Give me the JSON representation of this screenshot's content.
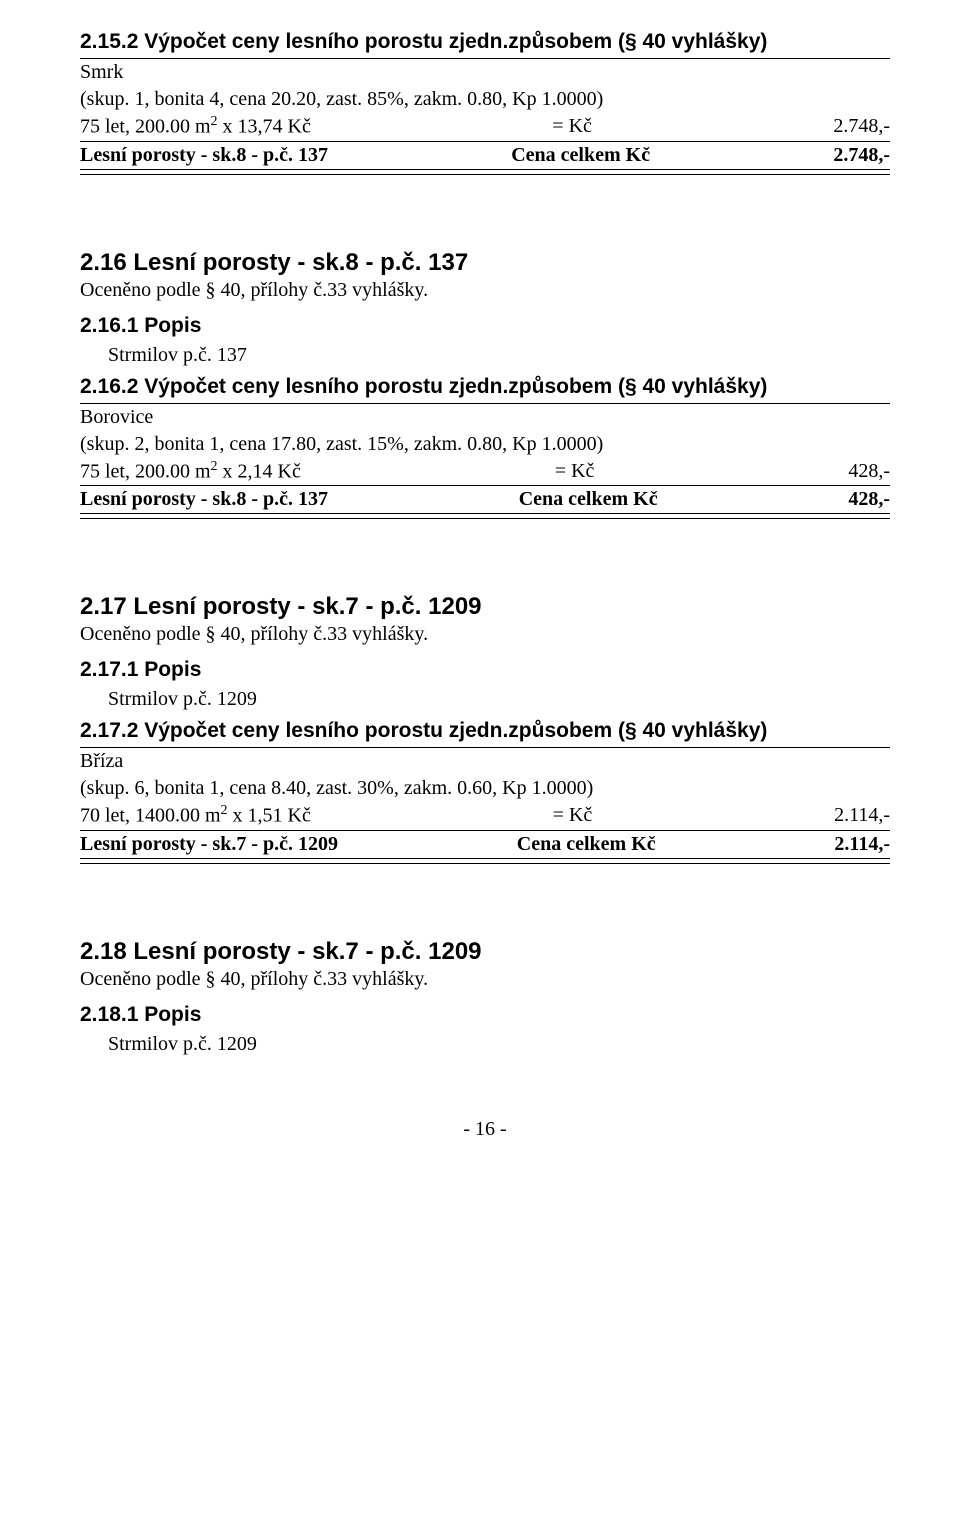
{
  "s15": {
    "heading": "2.15.2 Výpočet ceny lesního porostu zjedn.způsobem (§ 40 vyhlášky)",
    "species": "Smrk",
    "params": "(skup. 1, bonita 4, cena 20.20, zast. 85%, zakm. 0.80, Kp 1.0000)",
    "calc_left": "75 let, 200.00 m",
    "calc_right": " x 13,74 Kč",
    "eq": "= Kč",
    "amount": "2.748,-",
    "total_label": "Lesní porosty - sk.8 - p.č. 137",
    "total_mid": "Cena celkem Kč",
    "total_amount": "2.748,-"
  },
  "s16": {
    "heading": "2.16 Lesní porosty - sk.8 - p.č. 137",
    "sub": "Oceněno podle § 40, přílohy č.33 vyhlášky.",
    "popis_h": "2.16.1 Popis",
    "popis_t": "Strmilov p.č. 137",
    "calc_h": "2.16.2 Výpočet ceny lesního porostu zjedn.způsobem (§ 40 vyhlášky)",
    "species": "Borovice",
    "params": "(skup. 2, bonita 1, cena 17.80, zast. 15%, zakm. 0.80, Kp 1.0000)",
    "calc_left": "75 let, 200.00 m",
    "calc_right": " x 2,14 Kč",
    "eq": "= Kč",
    "amount": "428,-",
    "total_label": "Lesní porosty - sk.8 - p.č. 137",
    "total_mid": "Cena celkem Kč",
    "total_amount": "428,-"
  },
  "s17": {
    "heading": "2.17 Lesní porosty - sk.7 - p.č. 1209",
    "sub": "Oceněno podle § 40, přílohy č.33 vyhlášky.",
    "popis_h": "2.17.1 Popis",
    "popis_t": "Strmilov p.č. 1209",
    "calc_h": "2.17.2 Výpočet ceny lesního porostu zjedn.způsobem (§ 40 vyhlášky)",
    "species": "Bříza",
    "params": "(skup. 6, bonita 1, cena 8.40, zast. 30%, zakm. 0.60, Kp 1.0000)",
    "calc_left": "70 let, 1400.00 m",
    "calc_right": " x 1,51 Kč",
    "eq": "= Kč",
    "amount": "2.114,-",
    "total_label": "Lesní porosty - sk.7 - p.č. 1209",
    "total_mid": "Cena celkem Kč",
    "total_amount": "2.114,-"
  },
  "s18": {
    "heading": "2.18 Lesní porosty - sk.7 - p.č. 1209",
    "sub": "Oceněno podle § 40, přílohy č.33 vyhlášky.",
    "popis_h": "2.18.1 Popis",
    "popis_t": "Strmilov p.č. 1209"
  },
  "page": "- 16 -"
}
